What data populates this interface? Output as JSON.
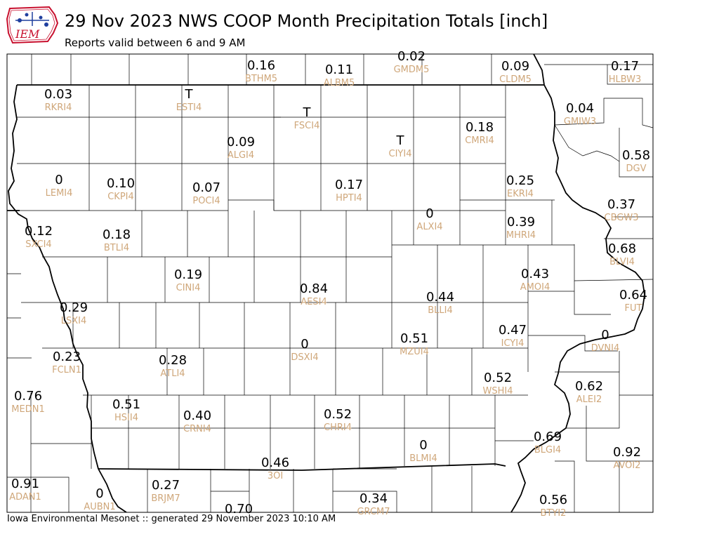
{
  "header": {
    "title": "29 Nov 2023 NWS COOP Month Precipitation Totals [inch]",
    "subtitle": "Reports valid between 6 and 9 AM"
  },
  "logo": {
    "text": "IEM"
  },
  "footer": {
    "text": "Iowa Environmental Mesonet :: generated 29 November 2023 10:10 AM"
  },
  "colors": {
    "value_text": "#000000",
    "station_id_text": "#cfa77a",
    "state_border": "#000000",
    "county_border": "#000000",
    "logo_red": "#c8102e",
    "logo_blue": "#1f3f9e"
  },
  "stations": [
    {
      "id": "BTHM5",
      "value": "0.16"
    },
    {
      "id": "ALBM5",
      "value": "0.11"
    },
    {
      "id": "GMDM5",
      "value": "0.02"
    },
    {
      "id": "CLDM5",
      "value": "0.09"
    },
    {
      "id": "HLBW3",
      "value": "0.17"
    },
    {
      "id": "RKRI4",
      "value": "0.03"
    },
    {
      "id": "ESTI4",
      "value": "T"
    },
    {
      "id": "FSCI4",
      "value": "T"
    },
    {
      "id": "CIYI4",
      "value": "T"
    },
    {
      "id": "GMIW3",
      "value": "0.04"
    },
    {
      "id": "CMRI4",
      "value": "0.18"
    },
    {
      "id": "ALGI4",
      "value": "0.09"
    },
    {
      "id": "DGV",
      "value": "0.58"
    },
    {
      "id": "LEMI4",
      "value": "0"
    },
    {
      "id": "CKPI4",
      "value": "0.10"
    },
    {
      "id": "POCI4",
      "value": "0.07"
    },
    {
      "id": "HPTI4",
      "value": "0.17"
    },
    {
      "id": "EKRI4",
      "value": "0.25"
    },
    {
      "id": "CBGW3",
      "value": "0.37"
    },
    {
      "id": "ALXI4",
      "value": "0"
    },
    {
      "id": "SXCI4",
      "value": "0.12"
    },
    {
      "id": "BTLI4",
      "value": "0.18"
    },
    {
      "id": "MHRI4",
      "value": "0.39"
    },
    {
      "id": "BLVI4",
      "value": "0.68"
    },
    {
      "id": "CINI4",
      "value": "0.19"
    },
    {
      "id": "AMOI4",
      "value": "0.43"
    },
    {
      "id": "AESI4",
      "value": "0.84"
    },
    {
      "id": "BLLI4",
      "value": "0.44"
    },
    {
      "id": "FUT",
      "value": "0.64"
    },
    {
      "id": "LSXI4",
      "value": "0.29"
    },
    {
      "id": "ICYI4",
      "value": "0.47"
    },
    {
      "id": "DVNI4",
      "value": "0"
    },
    {
      "id": "MZUI4",
      "value": "0.51"
    },
    {
      "id": "DSXI4",
      "value": "0"
    },
    {
      "id": "FCLN1",
      "value": "0.23"
    },
    {
      "id": "ATLI4",
      "value": "0.28"
    },
    {
      "id": "WSHI4",
      "value": "0.52"
    },
    {
      "id": "ALEI2",
      "value": "0.62"
    },
    {
      "id": "MEDN1",
      "value": "0.76"
    },
    {
      "id": "HSII4",
      "value": "0.51"
    },
    {
      "id": "CRNI4",
      "value": "0.40"
    },
    {
      "id": "CHRI4",
      "value": "0.52"
    },
    {
      "id": "BLMI4",
      "value": "0"
    },
    {
      "id": "BLGI4",
      "value": "0.69"
    },
    {
      "id": "AVOI2",
      "value": "0.92"
    },
    {
      "id": "3OI",
      "value": "0.46"
    },
    {
      "id": "ADAN1",
      "value": "0.91"
    },
    {
      "id": "AUBN1",
      "value": "0"
    },
    {
      "id": "BRJM7",
      "value": "0.27"
    },
    {
      "id": "GRCM7",
      "value": "0.34"
    },
    {
      "id": "BTYI2",
      "value": "0.56"
    },
    {
      "id": "",
      "value": "0.70"
    }
  ]
}
